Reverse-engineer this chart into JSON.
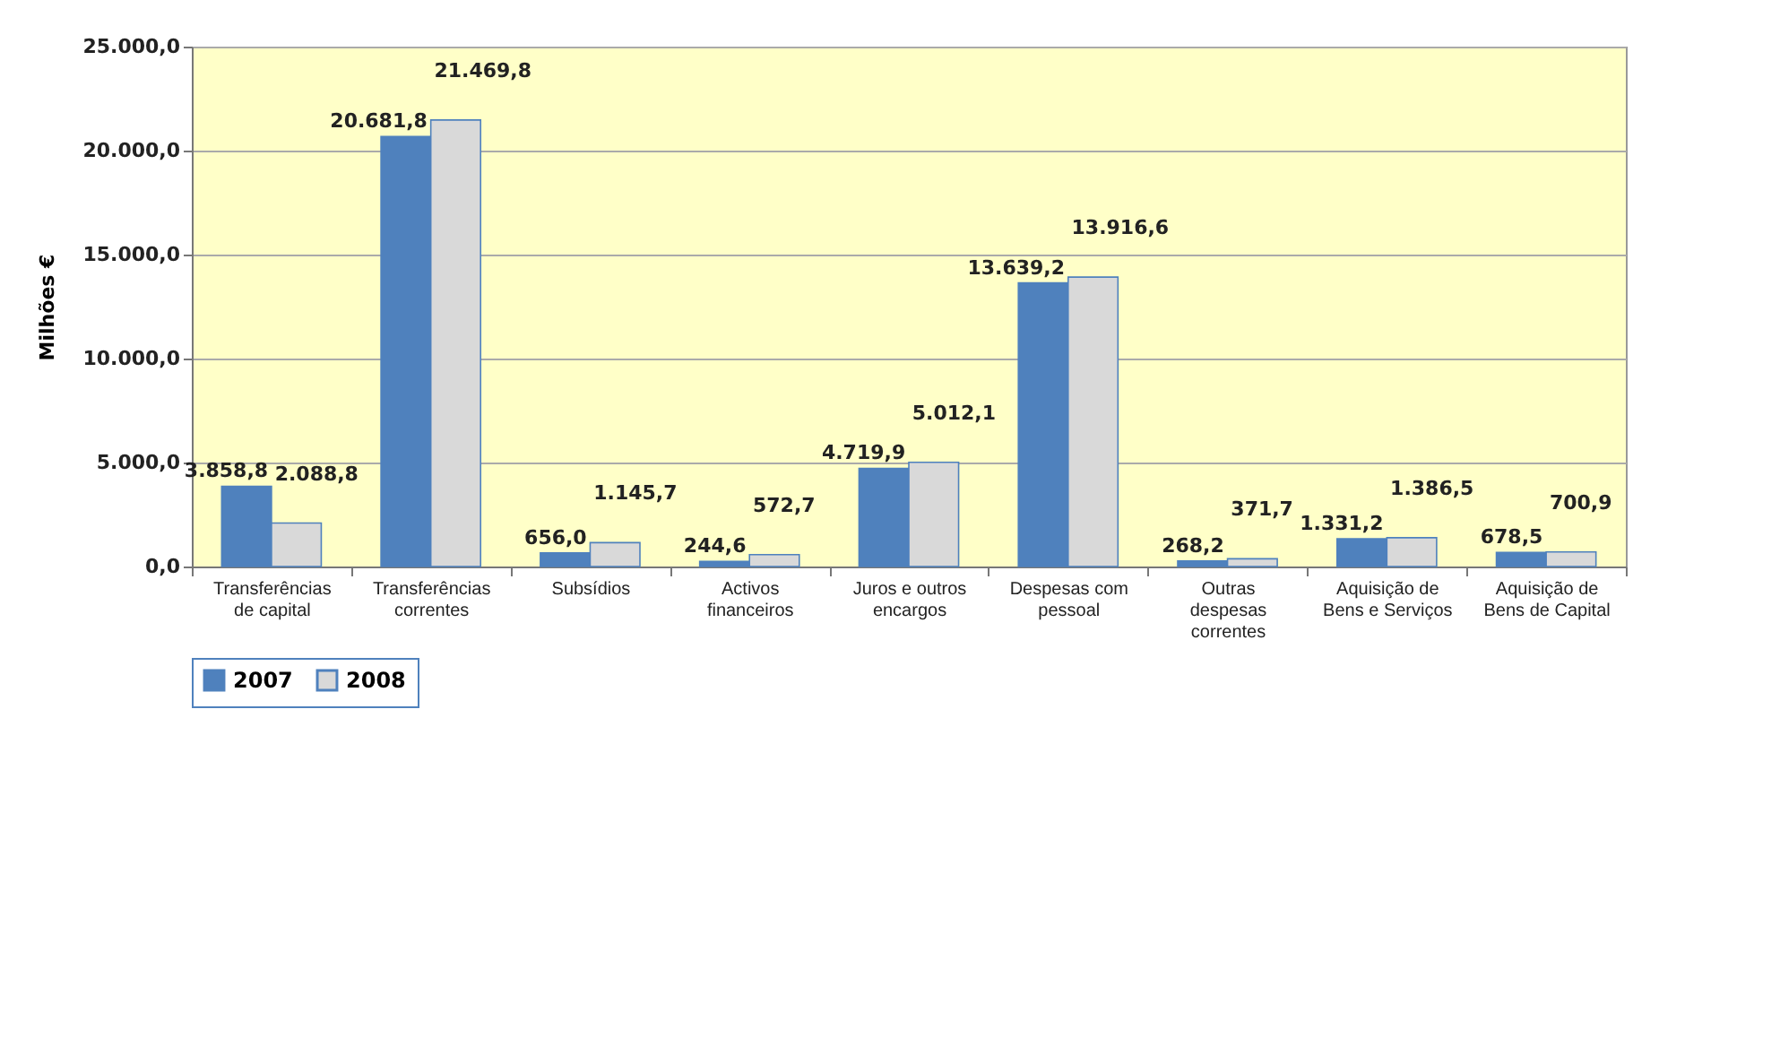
{
  "chart_data": {
    "type": "bar",
    "ylabel": "Milhões €",
    "categories": [
      "Transferências\nde capital",
      "Transferências\ncorrentes",
      "Subsídios",
      "Activos\nfinanceiros",
      "Juros e outros\nencargos",
      "Despesas com\npessoal",
      "Outras\ndespesas\ncorrentes",
      "Aquisição de\nBens e Serviços",
      "Aquisição de\nBens de Capital"
    ],
    "series": [
      {
        "name": "2007",
        "color": "#4f81bd",
        "values": [
          3858.8,
          20681.8,
          656.0,
          244.6,
          4719.9,
          13639.2,
          268.2,
          1331.2,
          678.5
        ],
        "value_labels": [
          "3.858,8",
          "20.681,8",
          "656,0",
          "244,6",
          "4.719,9",
          "13.639,2",
          "268,2",
          "1.331,2",
          "678,5"
        ]
      },
      {
        "name": "2008",
        "color": "#d9d9d9",
        "values": [
          2088.8,
          21469.8,
          1145.7,
          572.7,
          5012.1,
          13916.6,
          371.7,
          1386.5,
          700.9
        ],
        "value_labels": [
          "2.088,8",
          "21.469,8",
          "1.145,7",
          "572,7",
          "5.012,1",
          "13.916,6",
          "371,7",
          "1.386,5",
          "700,9"
        ]
      }
    ],
    "ylim": [
      0,
      25000
    ],
    "yticks": [
      {
        "value": 0,
        "label": "0,0"
      },
      {
        "value": 5000,
        "label": "5.000,0"
      },
      {
        "value": 10000,
        "label": "10.000,0"
      },
      {
        "value": 15000,
        "label": "15.000,0"
      },
      {
        "value": 20000,
        "label": "20.000,0"
      },
      {
        "value": 25000,
        "label": "25.000,0"
      }
    ],
    "grid": "y",
    "legend": "bottom"
  }
}
